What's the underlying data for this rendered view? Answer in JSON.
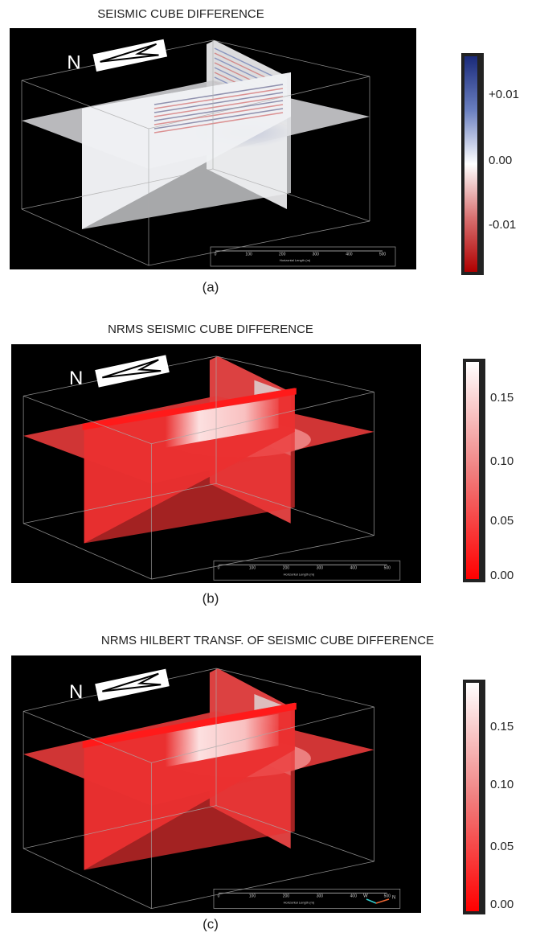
{
  "panels": [
    {
      "title": "SEISMIC CUBE DIFFERENCE",
      "caption": "(a)",
      "north": "N",
      "scale_bar": {
        "ticks": [
          "0",
          "100",
          "200",
          "300",
          "400",
          "500"
        ],
        "label": "Horizontal Length (m)"
      },
      "colorbar": {
        "ticks": [
          "+0.01",
          "0.00",
          "-0.01"
        ]
      }
    },
    {
      "title": "NRMS SEISMIC CUBE DIFFERENCE",
      "caption": "(b)",
      "north": "N",
      "scale_bar": {
        "ticks": [
          "0",
          "100",
          "200",
          "300",
          "400",
          "500"
        ],
        "label": "Horizontal Length (m)"
      },
      "colorbar": {
        "ticks": [
          "0.15",
          "0.10",
          "0.05",
          "0.00"
        ]
      }
    },
    {
      "title": "NRMS HILBERT TRANSF. OF SEISMIC CUBE DIFFERENCE",
      "caption": "(c)",
      "north": "N",
      "scale_bar": {
        "ticks": [
          "0",
          "100",
          "200",
          "300",
          "400",
          "500"
        ],
        "label": "Horizontal Length (m)"
      },
      "colorbar": {
        "ticks": [
          "0.15",
          "0.10",
          "0.05",
          "0.00"
        ]
      },
      "compass": [
        "W",
        "N"
      ]
    }
  ]
}
